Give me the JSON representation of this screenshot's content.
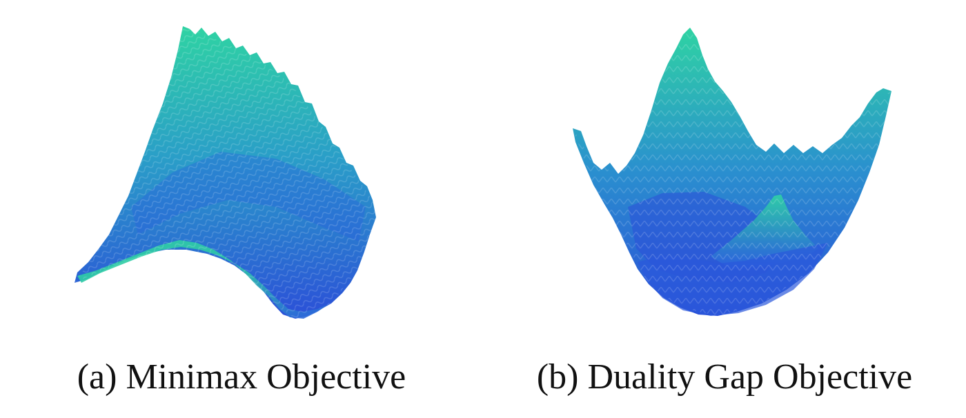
{
  "figure": {
    "panels": [
      {
        "caption": "(a) Minimax Objective",
        "icon": "surface-plot-saddle",
        "colors": [
          "#2b4fd8",
          "#2fd3a3"
        ]
      },
      {
        "caption": "(b) Duality Gap Objective",
        "icon": "surface-plot-bowl",
        "colors": [
          "#2b4fd8",
          "#2fd3a3"
        ]
      }
    ]
  }
}
